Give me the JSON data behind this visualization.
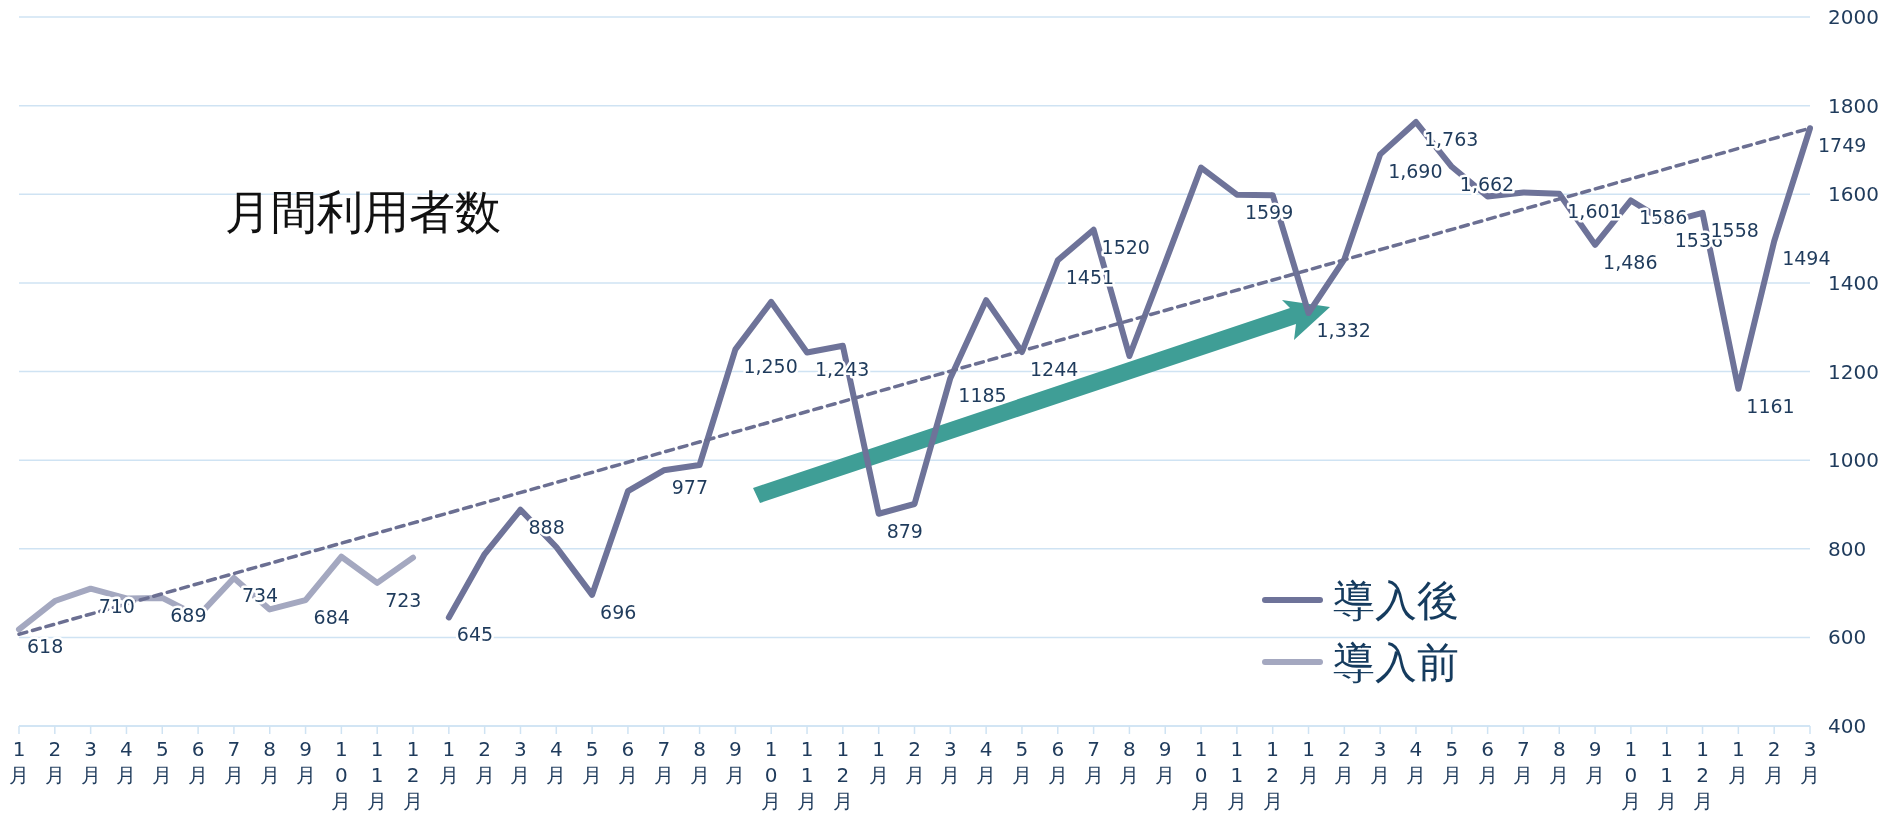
{
  "chart_data": {
    "type": "line",
    "title": "月間利用者数",
    "categories": [
      "1月",
      "2月",
      "3月",
      "4月",
      "5月",
      "6月",
      "7月",
      "8月",
      "9月",
      "10月",
      "11月",
      "12月",
      "1月",
      "2月",
      "3月",
      "4月",
      "5月",
      "6月",
      "7月",
      "8月",
      "9月",
      "10月",
      "11月",
      "12月",
      "1月",
      "2月",
      "3月",
      "4月",
      "5月",
      "6月",
      "7月",
      "8月",
      "9月",
      "10月",
      "11月",
      "12月",
      "1月",
      "2月",
      "3月",
      "4月",
      "5月",
      "6月",
      "7月",
      "8月",
      "9月",
      "10月",
      "11月",
      "12月",
      "1月",
      "2月",
      "3月"
    ],
    "series": [
      {
        "name": "導入後",
        "color": "#6e7399",
        "values": [
          null,
          null,
          null,
          null,
          null,
          null,
          null,
          null,
          null,
          null,
          null,
          null,
          645,
          788,
          888,
          804,
          696,
          930,
          977,
          989,
          1250,
          1357,
          1243,
          1258,
          879,
          901,
          1185,
          1361,
          1244,
          1451,
          1520,
          1235,
          1446,
          1660,
          1599,
          1598,
          1332,
          1453,
          1690,
          1763,
          1662,
          1595,
          1604,
          1601,
          1486,
          1586,
          1536,
          1558,
          1161,
          1494,
          1749
        ],
        "value_labels": [
          null,
          null,
          null,
          null,
          null,
          null,
          null,
          null,
          null,
          null,
          null,
          null,
          "645",
          null,
          "888",
          null,
          "696",
          null,
          "977",
          null,
          "1,250",
          null,
          "1,243",
          null,
          "879",
          null,
          "1185",
          null,
          "1244",
          "1451",
          "1520",
          null,
          null,
          null,
          "1599",
          null,
          "1,332",
          null,
          "1,690",
          "1,763",
          "1,662",
          null,
          null,
          "1,601",
          "1,486",
          "1586",
          "1536",
          "1558",
          "1161",
          "1494",
          "1749"
        ]
      },
      {
        "name": "導入前",
        "color": "#a4a8c0",
        "values": [
          618,
          682,
          710,
          688,
          689,
          648,
          734,
          663,
          684,
          782,
          723,
          780,
          null,
          null,
          null,
          null,
          null,
          null,
          null,
          null,
          null,
          null,
          null,
          null,
          null,
          null,
          null,
          null,
          null,
          null,
          null,
          null,
          null,
          null,
          null,
          null,
          null,
          null,
          null,
          null,
          null,
          null,
          null,
          null,
          null,
          null,
          null,
          null,
          null,
          null,
          null
        ],
        "value_labels": [
          "618",
          null,
          "710",
          null,
          "689",
          null,
          "734",
          null,
          "684",
          null,
          "723",
          null,
          null,
          null,
          null,
          null,
          null,
          null,
          null,
          null,
          null,
          null,
          null,
          null,
          null,
          null,
          null,
          null,
          null,
          null,
          null,
          null,
          null,
          null,
          null,
          null,
          null,
          null,
          null,
          null,
          null,
          null,
          null,
          null,
          null,
          null,
          null,
          null,
          null,
          null,
          null
        ]
      },
      {
        "type": "line",
        "color": "#6b6f92",
        "line_style": "dashed",
        "values": [
          607,
          null,
          null,
          null,
          null,
          null,
          null,
          null,
          null,
          null,
          null,
          null,
          null,
          null,
          null,
          null,
          null,
          null,
          null,
          null,
          null,
          null,
          null,
          null,
          null,
          null,
          null,
          null,
          null,
          null,
          null,
          null,
          null,
          null,
          null,
          null,
          null,
          null,
          null,
          null,
          null,
          null,
          null,
          null,
          null,
          null,
          null,
          null,
          null,
          null,
          1749
        ]
      }
    ],
    "ylim": [
      400,
      2000
    ],
    "yticks": [
      400,
      600,
      800,
      1000,
      1200,
      1400,
      1600,
      1800,
      2000
    ],
    "grid": "y",
    "legend": "bottom right"
  }
}
